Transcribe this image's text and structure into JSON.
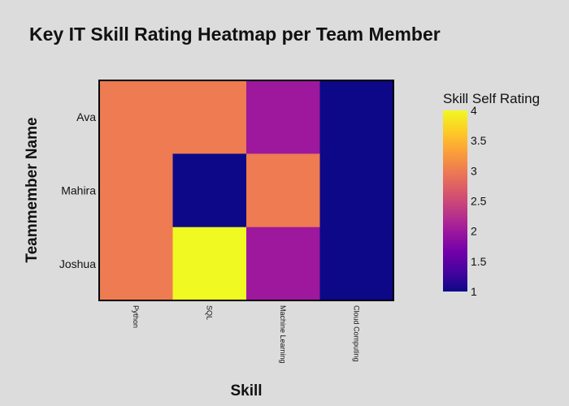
{
  "chart_data": {
    "type": "heatmap",
    "title": "Key IT Skill Rating Heatmap per Team Member",
    "xlabel": "Skill",
    "ylabel": "Teammember Name",
    "x_categories": [
      "Python",
      "SQL",
      "Machine Learning",
      "Cloud Computing"
    ],
    "y_categories": [
      "Ava",
      "Mahira",
      "Joshua"
    ],
    "values": [
      [
        3,
        3,
        2,
        1
      ],
      [
        3,
        1,
        3,
        1
      ],
      [
        3,
        4,
        2,
        1
      ]
    ],
    "colorbar": {
      "title": "Skill Self Rating",
      "range": [
        1,
        4
      ],
      "ticks": [
        "1",
        "1.5",
        "2",
        "2.5",
        "3",
        "3.5",
        "4"
      ],
      "colorscale": "plasma"
    }
  }
}
